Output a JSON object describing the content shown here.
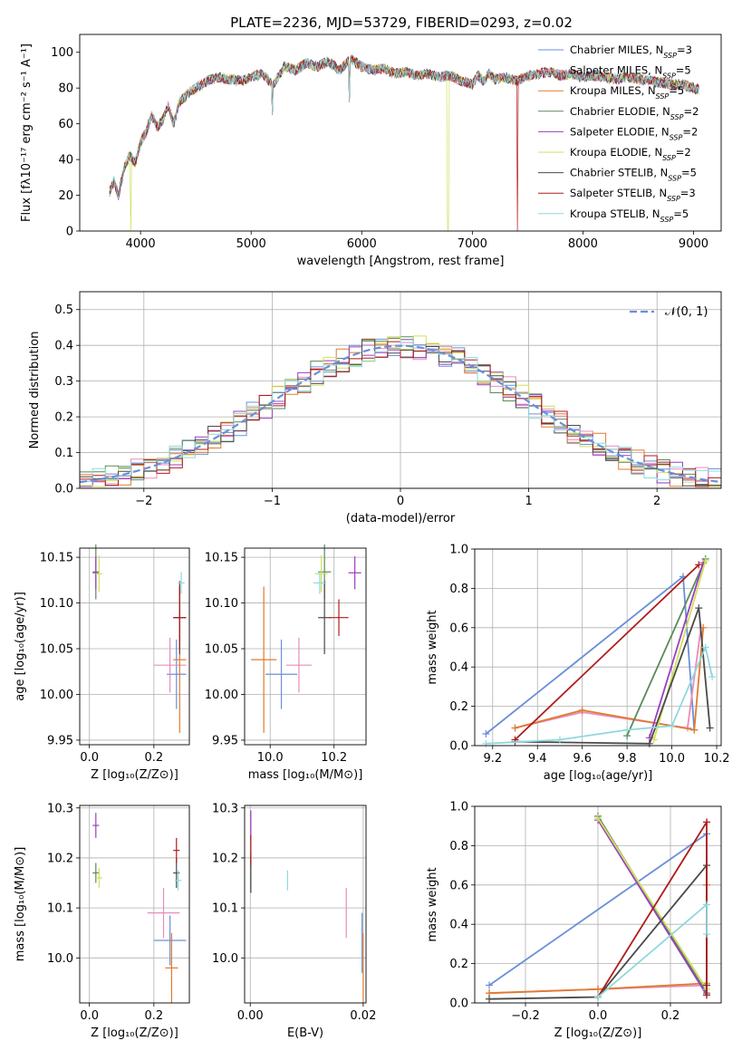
{
  "figure_title": "PLATE=2236, MJD=53729, FIBERID=0293, z=0.02",
  "colors": {
    "Chabrier MILES": "#6a8fd8",
    "Salpeter MILES": "#e88cbc",
    "Kroupa MILES": "#e07b2e",
    "Chabrier ELODIE": "#5a8a5a",
    "Salpeter ELODIE": "#9b3fbf",
    "Kroupa ELODIE": "#cfe05a",
    "Chabrier STELIB": "#4a4a4a",
    "Salpeter STELIB": "#b01c1c",
    "Kroupa STELIB": "#8ed8dc",
    "normal": "#6a8fd8"
  },
  "chart_data": [
    {
      "id": "spectrum",
      "type": "line",
      "title": "PLATE=2236, MJD=53729, FIBERID=0293, z=0.02",
      "xlabel": "wavelength [Angstrom, rest frame]",
      "ylabel": "Flux [fλ10⁻¹⁷ erg cm⁻² s⁻¹ A⁻¹]",
      "xlim": [
        3450,
        9250
      ],
      "ylim": [
        0,
        110
      ],
      "xticks": [
        4000,
        5000,
        6000,
        7000,
        8000,
        9000
      ],
      "yticks": [
        0,
        20,
        40,
        60,
        80,
        100
      ],
      "grid": false,
      "legend_position": "upper-right",
      "x": [
        3720,
        3760,
        3800,
        3850,
        3900,
        3950,
        4000,
        4050,
        4100,
        4150,
        4200,
        4250,
        4300,
        4350,
        4400,
        4450,
        4500,
        4600,
        4700,
        4800,
        4900,
        5000,
        5100,
        5200,
        5300,
        5400,
        5500,
        5600,
        5700,
        5800,
        5900,
        6000,
        6100,
        6200,
        6300,
        6400,
        6500,
        6600,
        6700,
        6800,
        6900,
        7000,
        7050,
        7100,
        7150,
        7200,
        7300,
        7400,
        7500,
        7600,
        7700,
        7800,
        7900,
        8000,
        8100,
        8200,
        8300,
        8400,
        8500,
        8600,
        8700,
        8800,
        8900,
        9000,
        9050
      ],
      "y": [
        22,
        28,
        20,
        35,
        42,
        38,
        50,
        55,
        65,
        58,
        62,
        70,
        60,
        72,
        75,
        78,
        80,
        84,
        86,
        85,
        84,
        86,
        88,
        82,
        92,
        90,
        94,
        92,
        95,
        90,
        96,
        92,
        90,
        91,
        88,
        89,
        87,
        88,
        86,
        87,
        84,
        82,
        87,
        84,
        88,
        85,
        86,
        84,
        87,
        88,
        89,
        87,
        88,
        86,
        87,
        86,
        85,
        86,
        85,
        84,
        83,
        82,
        82,
        80,
        79
      ],
      "spikes": [
        {
          "x": 3910,
          "y": 0
        },
        {
          "x": 5190,
          "y": 65
        },
        {
          "x": 5890,
          "y": 72
        },
        {
          "x": 6780,
          "y": 0
        },
        {
          "x": 7410,
          "y": 0
        }
      ],
      "series": [
        {
          "name": "Chabrier MILES, N",
          "sub": "SSP",
          "num": "3"
        },
        {
          "name": "Salpeter MILES, N",
          "sub": "SSP",
          "num": "5"
        },
        {
          "name": "Kroupa MILES, N",
          "sub": "SSP",
          "num": "5"
        },
        {
          "name": "Chabrier ELODIE, N",
          "sub": "SSP",
          "num": "2"
        },
        {
          "name": "Salpeter ELODIE, N",
          "sub": "SSP",
          "num": "2"
        },
        {
          "name": "Kroupa ELODIE, N",
          "sub": "SSP",
          "num": "2"
        },
        {
          "name": "Chabrier STELIB, N",
          "sub": "SSP",
          "num": "5"
        },
        {
          "name": "Salpeter STELIB, N",
          "sub": "SSP",
          "num": "3"
        },
        {
          "name": "Kroupa STELIB, N",
          "sub": "SSP",
          "num": "5"
        }
      ]
    },
    {
      "id": "residuals",
      "type": "line",
      "xlabel": "(data-model)/error",
      "ylabel": "Normed distribution",
      "xlim": [
        -2.5,
        2.5
      ],
      "ylim": [
        0,
        0.55
      ],
      "xticks": [
        -2,
        -1,
        0,
        1,
        2
      ],
      "yticks": [
        0.0,
        0.1,
        0.2,
        0.3,
        0.4,
        0.5
      ],
      "grid": true,
      "legend_position": "upper-right",
      "legend": "𝒩(0, 1)",
      "bin_width": 0.1,
      "bin_start": -2.5
    },
    {
      "id": "age-vs-Z",
      "type": "scatter",
      "xlabel": "Z [log₁₀(Z/Z⊙)]",
      "ylabel": "age  [log₁₀(age/yr)]",
      "xlim": [
        -0.03,
        0.31
      ],
      "ylim": [
        9.945,
        10.16
      ],
      "xticks": [
        0.0,
        0.2
      ],
      "yticks": [
        9.95,
        10.0,
        10.05,
        10.1,
        10.15
      ],
      "grid": true,
      "points": [
        {
          "series": "Chabrier MILES",
          "x": 0.27,
          "y": 10.022,
          "xerr": 0.03,
          "yerr": 0.038
        },
        {
          "series": "Salpeter MILES",
          "x": 0.25,
          "y": 10.032,
          "xerr": 0.05,
          "yerr": 0.03
        },
        {
          "series": "Kroupa MILES",
          "x": 0.28,
          "y": 10.038,
          "xerr": 0.02,
          "yerr": 0.08
        },
        {
          "series": "Chabrier ELODIE",
          "x": 0.02,
          "y": 10.134,
          "xerr": 0.01,
          "yerr": 0.03
        },
        {
          "series": "Salpeter ELODIE",
          "x": 0.02,
          "y": 10.133,
          "xerr": 0.01,
          "yerr": 0.018
        },
        {
          "series": "Kroupa ELODIE",
          "x": 0.03,
          "y": 10.132,
          "xerr": 0.01,
          "yerr": 0.02
        },
        {
          "series": "Chabrier STELIB",
          "x": 0.28,
          "y": 10.084,
          "xerr": 0.02,
          "yerr": 0.04
        },
        {
          "series": "Salpeter STELIB",
          "x": 0.28,
          "y": 10.084,
          "xerr": 0.02,
          "yerr": 0.035
        },
        {
          "series": "Kroupa STELIB",
          "x": 0.285,
          "y": 10.122,
          "xerr": 0.01,
          "yerr": 0.012
        }
      ]
    },
    {
      "id": "age-vs-mass",
      "type": "scatter",
      "xlabel": "mass [log₁₀(M/M⊙)]",
      "ylabel": "",
      "xlim": [
        9.92,
        10.3
      ],
      "ylim": [
        9.945,
        10.16
      ],
      "xticks": [
        10.0,
        10.2
      ],
      "yticks": [
        9.95,
        10.0,
        10.05,
        10.1,
        10.15
      ],
      "grid": true,
      "points": [
        {
          "series": "Chabrier MILES",
          "x": 10.035,
          "y": 10.022,
          "xerr": 0.05,
          "yerr": 0.038
        },
        {
          "series": "Salpeter MILES",
          "x": 10.09,
          "y": 10.032,
          "xerr": 0.04,
          "yerr": 0.03
        },
        {
          "series": "Kroupa MILES",
          "x": 9.98,
          "y": 10.038,
          "xerr": 0.04,
          "yerr": 0.08
        },
        {
          "series": "Chabrier ELODIE",
          "x": 10.17,
          "y": 10.134,
          "xerr": 0.02,
          "yerr": 0.03
        },
        {
          "series": "Salpeter ELODIE",
          "x": 10.265,
          "y": 10.133,
          "xerr": 0.02,
          "yerr": 0.018
        },
        {
          "series": "Kroupa ELODIE",
          "x": 10.16,
          "y": 10.132,
          "xerr": 0.02,
          "yerr": 0.02
        },
        {
          "series": "Chabrier STELIB",
          "x": 10.17,
          "y": 10.084,
          "xerr": 0.02,
          "yerr": 0.04
        },
        {
          "series": "Salpeter STELIB",
          "x": 10.215,
          "y": 10.084,
          "xerr": 0.03,
          "yerr": 0.02
        },
        {
          "series": "Kroupa STELIB",
          "x": 10.155,
          "y": 10.122,
          "xerr": 0.02,
          "yerr": 0.012
        }
      ]
    },
    {
      "id": "weight-vs-age",
      "type": "line",
      "xlabel": "age  [log₁₀(age/yr)]",
      "ylabel": "mass weight",
      "xlim": [
        9.12,
        10.22
      ],
      "ylim": [
        0.0,
        1.0
      ],
      "xticks": [
        9.2,
        9.4,
        9.6,
        9.8,
        10.0,
        10.2
      ],
      "yticks": [
        0.0,
        0.2,
        0.4,
        0.6,
        0.8,
        1.0
      ],
      "grid": true,
      "series": [
        {
          "series": "Chabrier MILES",
          "x": [
            9.17,
            10.05,
            10.1
          ],
          "y": [
            0.06,
            0.86,
            0.08
          ]
        },
        {
          "series": "Salpeter MILES",
          "x": [
            9.3,
            9.6,
            10.07,
            10.13
          ],
          "y": [
            0.09,
            0.17,
            0.09,
            0.6
          ]
        },
        {
          "series": "Kroupa MILES",
          "x": [
            9.3,
            9.6,
            10.1,
            10.14
          ],
          "y": [
            0.09,
            0.18,
            0.08,
            0.6
          ]
        },
        {
          "series": "Chabrier ELODIE",
          "x": [
            9.8,
            10.15
          ],
          "y": [
            0.05,
            0.95
          ]
        },
        {
          "series": "Salpeter ELODIE",
          "x": [
            9.9,
            10.14
          ],
          "y": [
            0.04,
            0.93
          ]
        },
        {
          "series": "Kroupa ELODIE",
          "x": [
            9.92,
            10.15
          ],
          "y": [
            0.03,
            0.94
          ]
        },
        {
          "series": "Chabrier STELIB",
          "x": [
            9.3,
            9.9,
            10.12,
            10.17
          ],
          "y": [
            0.02,
            0.01,
            0.7,
            0.09
          ]
        },
        {
          "series": "Salpeter STELIB",
          "x": [
            9.3,
            10.12
          ],
          "y": [
            0.03,
            0.92
          ]
        },
        {
          "series": "Kroupa STELIB",
          "x": [
            9.17,
            9.5,
            9.8,
            10.0,
            10.15,
            10.18
          ],
          "y": [
            0.01,
            0.03,
            0.08,
            0.1,
            0.5,
            0.35
          ]
        }
      ]
    },
    {
      "id": "mass-vs-Z",
      "type": "scatter",
      "xlabel": "Z [log₁₀(Z/Z⊙)]",
      "ylabel": "mass [log₁₀(M/M⊙)]",
      "xlim": [
        -0.03,
        0.31
      ],
      "ylim": [
        9.91,
        10.305
      ],
      "xticks": [
        0.0,
        0.2
      ],
      "yticks": [
        10.0,
        10.1,
        10.2,
        10.3
      ],
      "grid": true,
      "points": [
        {
          "series": "Chabrier MILES",
          "x": 0.25,
          "y": 10.035,
          "xerr": 0.05,
          "yerr": 0.05
        },
        {
          "series": "Salpeter MILES",
          "x": 0.23,
          "y": 10.09,
          "xerr": 0.05,
          "yerr": 0.05
        },
        {
          "series": "Kroupa MILES",
          "x": 0.255,
          "y": 9.98,
          "xerr": 0.02,
          "yerr": 0.07
        },
        {
          "series": "Chabrier ELODIE",
          "x": 0.02,
          "y": 10.17,
          "xerr": 0.01,
          "yerr": 0.02
        },
        {
          "series": "Salpeter ELODIE",
          "x": 0.02,
          "y": 10.265,
          "xerr": 0.01,
          "yerr": 0.025
        },
        {
          "series": "Kroupa ELODIE",
          "x": 0.03,
          "y": 10.16,
          "xerr": 0.01,
          "yerr": 0.02
        },
        {
          "series": "Chabrier STELIB",
          "x": 0.27,
          "y": 10.17,
          "xerr": 0.01,
          "yerr": 0.03
        },
        {
          "series": "Salpeter STELIB",
          "x": 0.27,
          "y": 10.215,
          "xerr": 0.01,
          "yerr": 0.025
        },
        {
          "series": "Kroupa STELIB",
          "x": 0.275,
          "y": 10.155,
          "xerr": 0.01,
          "yerr": 0.02
        }
      ]
    },
    {
      "id": "mass-vs-EBV",
      "type": "scatter",
      "xlabel": "E(B-V)",
      "ylabel": "",
      "xlim": [
        -0.001,
        0.0205
      ],
      "ylim": [
        9.91,
        10.305
      ],
      "xticks": [
        0.0,
        0.02
      ],
      "yticks": [
        10.0,
        10.1,
        10.2,
        10.3
      ],
      "grid": true,
      "points": [
        {
          "series": "Chabrier MILES",
          "x": 0.0198,
          "y": 10.03,
          "yerr": 0.06
        },
        {
          "series": "Salpeter MILES",
          "x": 0.017,
          "y": 10.09,
          "yerr": 0.05
        },
        {
          "series": "Kroupa MILES",
          "x": 0.02,
          "y": 9.98,
          "yerr": 0.07
        },
        {
          "series": "Chabrier ELODIE",
          "x": 0.0001,
          "y": 10.17,
          "yerr": 0.03
        },
        {
          "series": "Salpeter ELODIE",
          "x": 0.0001,
          "y": 10.265,
          "yerr": 0.03
        },
        {
          "series": "Kroupa ELODIE",
          "x": 0.0001,
          "y": 10.16,
          "yerr": 0.02
        },
        {
          "series": "Chabrier STELIB",
          "x": 0.0001,
          "y": 10.17,
          "yerr": 0.04
        },
        {
          "series": "Salpeter STELIB",
          "x": 0.0001,
          "y": 10.215,
          "yerr": 0.03
        },
        {
          "series": "Kroupa STELIB",
          "x": 0.0066,
          "y": 10.155,
          "yerr": 0.02
        }
      ]
    },
    {
      "id": "weight-vs-Z",
      "type": "line",
      "xlabel": "Z [log₁₀(Z/Z⊙)]",
      "ylabel": "mass weight",
      "xlim": [
        -0.34,
        0.34
      ],
      "ylim": [
        0.0,
        1.0
      ],
      "xticks": [
        -0.2,
        0.0,
        0.2
      ],
      "yticks": [
        0.0,
        0.2,
        0.4,
        0.6,
        0.8,
        1.0
      ],
      "grid": true,
      "series": [
        {
          "series": "Chabrier MILES",
          "x": [
            -0.3,
            0.3,
            0.3
          ],
          "y": [
            0.09,
            0.86,
            0.05
          ]
        },
        {
          "series": "Salpeter MILES",
          "x": [
            -0.3,
            0.0,
            0.3,
            0.3
          ],
          "y": [
            0.05,
            0.07,
            0.09,
            0.6
          ]
        },
        {
          "series": "Kroupa MILES",
          "x": [
            -0.3,
            0.0,
            0.3,
            0.3
          ],
          "y": [
            0.05,
            0.07,
            0.1,
            0.6
          ]
        },
        {
          "series": "Chabrier ELODIE",
          "x": [
            0.0,
            0.3
          ],
          "y": [
            0.95,
            0.05
          ]
        },
        {
          "series": "Salpeter ELODIE",
          "x": [
            0.0,
            0.3
          ],
          "y": [
            0.93,
            0.04
          ]
        },
        {
          "series": "Kroupa ELODIE",
          "x": [
            0.0,
            0.3
          ],
          "y": [
            0.94,
            0.07
          ]
        },
        {
          "series": "Chabrier STELIB",
          "x": [
            -0.3,
            0.0,
            0.3,
            0.3
          ],
          "y": [
            0.02,
            0.03,
            0.7,
            0.09
          ]
        },
        {
          "series": "Salpeter STELIB",
          "x": [
            0.0,
            0.3,
            0.3
          ],
          "y": [
            0.03,
            0.92,
            0.04
          ]
        },
        {
          "series": "Kroupa STELIB",
          "x": [
            0.0,
            0.3,
            0.3
          ],
          "y": [
            0.03,
            0.5,
            0.35
          ]
        }
      ]
    }
  ]
}
